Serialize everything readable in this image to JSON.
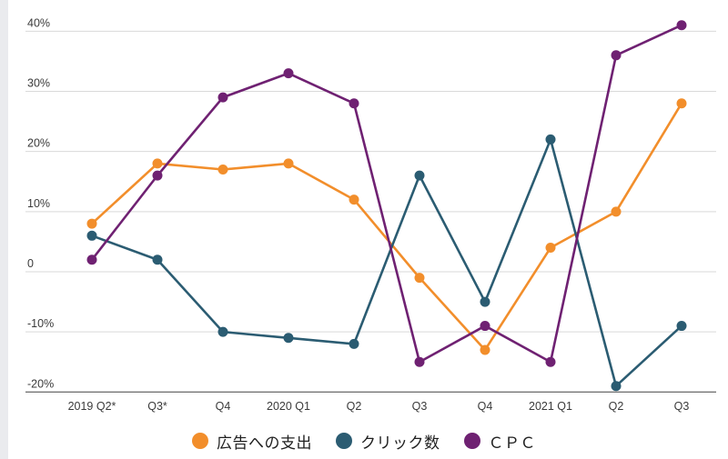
{
  "chart_data": {
    "type": "line",
    "categories": [
      "2019 Q2*",
      "Q3*",
      "Q4",
      "2020 Q1",
      "Q2",
      "Q3",
      "Q4",
      "2021 Q1",
      "Q2",
      "Q3"
    ],
    "series": [
      {
        "name": "広告への支出",
        "color": "#f28e2b",
        "values": [
          8,
          18,
          17,
          18,
          12,
          -1,
          -13,
          4,
          10,
          28
        ]
      },
      {
        "name": "クリック数",
        "color": "#2b5c72",
        "values": [
          6,
          2,
          -10,
          -11,
          -12,
          16,
          -5,
          22,
          -19,
          -9
        ]
      },
      {
        "name": "ＣＰＣ",
        "color": "#6f2172",
        "values": [
          2,
          16,
          29,
          33,
          28,
          -15,
          -9,
          -15,
          36,
          41
        ]
      }
    ],
    "y_ticks": [
      {
        "value": 40,
        "label": "40%"
      },
      {
        "value": 30,
        "label": "30%"
      },
      {
        "value": 20,
        "label": "20%"
      },
      {
        "value": 10,
        "label": "10%"
      },
      {
        "value": 0,
        "label": "0"
      },
      {
        "value": -10,
        "label": "-10%"
      },
      {
        "value": -20,
        "label": "-20%"
      }
    ],
    "ylim": [
      -20,
      40
    ],
    "title": "",
    "xlabel": "",
    "ylabel": "",
    "grid": "horizontal",
    "legend_position": "bottom",
    "grid_color": "#d9d9d9",
    "bottom_axis_color": "#757575",
    "tick_label_color": "#3a3a3a"
  }
}
